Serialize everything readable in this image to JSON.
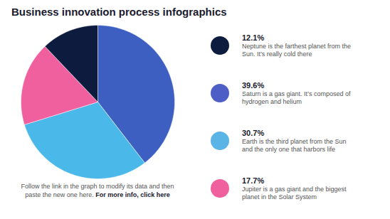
{
  "chart_data": {
    "type": "pie",
    "title": "Business innovation process infographics",
    "values": [
      39.6,
      30.7,
      17.7,
      12.1
    ],
    "colors": [
      "#3d5fc1",
      "#4ab8e8",
      "#f0609e",
      "#0d1b3e"
    ],
    "annotations": [
      {
        "label": "12.1%",
        "color": "#0d1b3e",
        "text": [
          "Neptune is the farthest planet from the",
          "Sun. It’s really cold there"
        ]
      },
      {
        "label": "39.6%",
        "color": "#4d5ec7",
        "text": [
          "Saturn is a gas giant. It’s composed of",
          "hydrogen and helium"
        ]
      },
      {
        "label": "30.7%",
        "color": "#5ab4e5",
        "text": [
          "Earth is the third planet from the Sun",
          "and the only one that harbors life"
        ]
      },
      {
        "label": "17.7%",
        "color": "#f0609e",
        "text": [
          "Jupiter is a gas giant and the biggest",
          "planet in the Solar System"
        ]
      },
      {
        "text": [
          "Follow the link in the graph to modify its data and then",
          "paste the new one here. "
        ],
        "bold": "For more info, click here"
      }
    ]
  }
}
